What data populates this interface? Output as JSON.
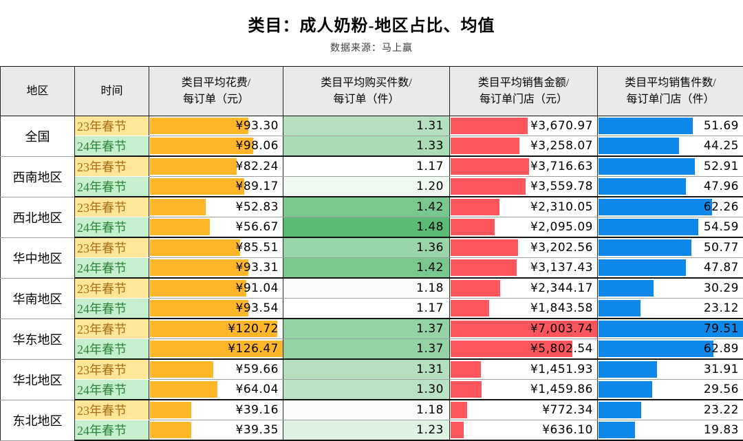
{
  "title": "类目：成人奶粉-地区占比、均值",
  "subtitle": "数据来源：马上赢",
  "chart_data": {
    "type": "table",
    "title": "类目：成人奶粉-地区占比、均值",
    "subtitle": "数据来源：马上赢",
    "columns": [
      "地区",
      "时间",
      "类目平均花费/每订单（元）",
      "类目平均购买件数/每订单（件）",
      "类目平均销售金额/每订单门店（元）",
      "类目平均销售件数/每订单门店（件）"
    ],
    "columns_lines": [
      [
        "地区",
        ""
      ],
      [
        "时间",
        ""
      ],
      [
        "类目平均花费/",
        "每订单（元）"
      ],
      [
        "类目平均购买件数/",
        "每订单（件）"
      ],
      [
        "类目平均销售金额/",
        "每订单门店（元）"
      ],
      [
        "类目平均销售件数/",
        "每订单门店（件）"
      ]
    ],
    "periods": [
      "23年春节",
      "24年春节"
    ],
    "regions": [
      {
        "name": "全国",
        "rows": [
          {
            "period": "23年春节",
            "period_type": "y23",
            "spend": 93.3,
            "spend_label": "¥93.30",
            "items": 1.31,
            "items_label": "1.31",
            "sales": 3670.97,
            "sales_label": "¥3,670.97",
            "units": 51.69,
            "units_label": "51.69"
          },
          {
            "period": "24年春节",
            "period_type": "y24",
            "spend": 98.06,
            "spend_label": "¥98.06",
            "items": 1.33,
            "items_label": "1.33",
            "sales": 3258.07,
            "sales_label": "¥3,258.07",
            "units": 44.25,
            "units_label": "44.25"
          }
        ]
      },
      {
        "name": "西南地区",
        "rows": [
          {
            "period": "23年春节",
            "period_type": "y23",
            "spend": 82.24,
            "spend_label": "¥82.24",
            "items": 1.17,
            "items_label": "1.17",
            "sales": 3716.63,
            "sales_label": "¥3,716.63",
            "units": 52.91,
            "units_label": "52.91"
          },
          {
            "period": "24年春节",
            "period_type": "y24",
            "spend": 89.17,
            "spend_label": "¥89.17",
            "items": 1.2,
            "items_label": "1.20",
            "sales": 3559.78,
            "sales_label": "¥3,559.78",
            "units": 47.96,
            "units_label": "47.96"
          }
        ]
      },
      {
        "name": "西北地区",
        "rows": [
          {
            "period": "23年春节",
            "period_type": "y23",
            "spend": 52.83,
            "spend_label": "¥52.83",
            "items": 1.42,
            "items_label": "1.42",
            "sales": 2310.05,
            "sales_label": "¥2,310.05",
            "units": 62.26,
            "units_label": "62.26"
          },
          {
            "period": "24年春节",
            "period_type": "y24",
            "spend": 56.67,
            "spend_label": "¥56.67",
            "items": 1.48,
            "items_label": "1.48",
            "sales": 2095.09,
            "sales_label": "¥2,095.09",
            "units": 54.59,
            "units_label": "54.59"
          }
        ]
      },
      {
        "name": "华中地区",
        "rows": [
          {
            "period": "23年春节",
            "period_type": "y23",
            "spend": 85.51,
            "spend_label": "¥85.51",
            "items": 1.36,
            "items_label": "1.36",
            "sales": 3202.56,
            "sales_label": "¥3,202.56",
            "units": 50.77,
            "units_label": "50.77"
          },
          {
            "period": "24年春节",
            "period_type": "y24",
            "spend": 93.31,
            "spend_label": "¥93.31",
            "items": 1.42,
            "items_label": "1.42",
            "sales": 3137.43,
            "sales_label": "¥3,137.43",
            "units": 47.87,
            "units_label": "47.87"
          }
        ]
      },
      {
        "name": "华南地区",
        "rows": [
          {
            "period": "23年春节",
            "period_type": "y23",
            "spend": 91.04,
            "spend_label": "¥91.04",
            "items": 1.18,
            "items_label": "1.18",
            "sales": 2344.17,
            "sales_label": "¥2,344.17",
            "units": 30.29,
            "units_label": "30.29"
          },
          {
            "period": "24年春节",
            "period_type": "y24",
            "spend": 93.54,
            "spend_label": "¥93.54",
            "items": 1.17,
            "items_label": "1.17",
            "sales": 1843.58,
            "sales_label": "¥1,843.58",
            "units": 23.12,
            "units_label": "23.12"
          }
        ]
      },
      {
        "name": "华东地区",
        "rows": [
          {
            "period": "23年春节",
            "period_type": "y23",
            "spend": 120.72,
            "spend_label": "¥120.72",
            "items": 1.37,
            "items_label": "1.37",
            "sales": 7003.74,
            "sales_label": "¥7,003.74",
            "units": 79.51,
            "units_label": "79.51"
          },
          {
            "period": "24年春节",
            "period_type": "y24",
            "spend": 126.47,
            "spend_label": "¥126.47",
            "items": 1.37,
            "items_label": "1.37",
            "sales": 5802.54,
            "sales_label": "¥5,802.54",
            "units": 62.89,
            "units_label": "62.89"
          }
        ]
      },
      {
        "name": "华北地区",
        "rows": [
          {
            "period": "23年春节",
            "period_type": "y23",
            "spend": 59.66,
            "spend_label": "¥59.66",
            "items": 1.31,
            "items_label": "1.31",
            "sales": 1451.93,
            "sales_label": "¥1,451.93",
            "units": 31.91,
            "units_label": "31.91"
          },
          {
            "period": "24年春节",
            "period_type": "y24",
            "spend": 64.04,
            "spend_label": "¥64.04",
            "items": 1.3,
            "items_label": "1.30",
            "sales": 1459.86,
            "sales_label": "¥1,459.86",
            "units": 29.56,
            "units_label": "29.56"
          }
        ]
      },
      {
        "name": "东北地区",
        "rows": [
          {
            "period": "23年春节",
            "period_type": "y23",
            "spend": 39.16,
            "spend_label": "¥39.16",
            "items": 1.18,
            "items_label": "1.18",
            "sales": 772.34,
            "sales_label": "¥772.34",
            "units": 23.22,
            "units_label": "23.22"
          },
          {
            "period": "24年春节",
            "period_type": "y24",
            "spend": 39.35,
            "spend_label": "¥39.35",
            "items": 1.23,
            "items_label": "1.23",
            "sales": 636.1,
            "sales_label": "¥636.10",
            "units": 19.83,
            "units_label": "19.83"
          }
        ]
      }
    ],
    "scales": {
      "spend_max": 126.47,
      "items_min": 1.17,
      "items_max": 1.48,
      "sales_max": 7003.74,
      "units_max": 79.51
    }
  },
  "style": {
    "spend_bar_color": "#FFB628",
    "sales_bar_color": "#FF555D",
    "units_bar_color": "#0D88E8",
    "items_scale_min_color": "#FFFFFF",
    "items_scale_max_color": "#5ABB72",
    "period_23_bg": "#FFE699",
    "period_23_text": "#AA6D15",
    "period_24_bg": "#C6EFCE",
    "period_24_text": "#2B8437",
    "header_bg": "#EAEAEA"
  }
}
